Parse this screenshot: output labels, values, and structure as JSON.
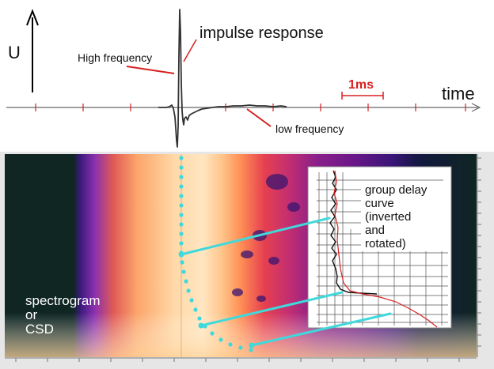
{
  "top_panel": {
    "y_axis_label": "U",
    "x_axis_label": "time",
    "impulse_label": "impulse response",
    "high_freq_label": "High frequency",
    "low_freq_label": "low frequency",
    "scale_label": "1ms"
  },
  "bottom_panel": {
    "spectrogram_label": "spectrogram\nor\nCSD",
    "group_delay_label": "group delay\n curve\n(inverted\nand\nrotated)"
  },
  "colors": {
    "cyan": "#3fd9dc",
    "red": "#d62020",
    "spectrogram_dark": "#0f2622"
  }
}
